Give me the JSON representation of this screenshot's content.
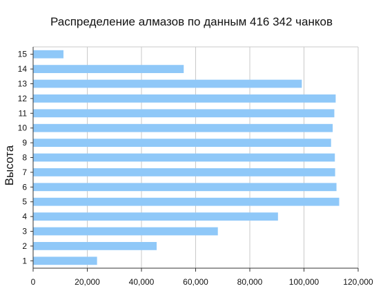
{
  "chart_data": {
    "type": "bar",
    "orientation": "horizontal",
    "title": "Распределение алмазов по данным 416 342 чанков",
    "xlabel": "",
    "ylabel": "Высота",
    "categories": [
      "1",
      "2",
      "3",
      "4",
      "5",
      "6",
      "7",
      "8",
      "9",
      "10",
      "11",
      "12",
      "13",
      "14",
      "15"
    ],
    "values": [
      23600,
      45600,
      68200,
      90400,
      113000,
      112000,
      111500,
      111400,
      110000,
      110600,
      111200,
      111700,
      99200,
      55600,
      11200
    ],
    "xlim": [
      0,
      120000
    ],
    "xticks": [
      "0",
      "20,000",
      "40,000",
      "60,000",
      "80,000",
      "100,000",
      "120,000"
    ],
    "grid": true,
    "bar_color": "#8fc8f8",
    "grid_color": "#c9c9c9"
  }
}
